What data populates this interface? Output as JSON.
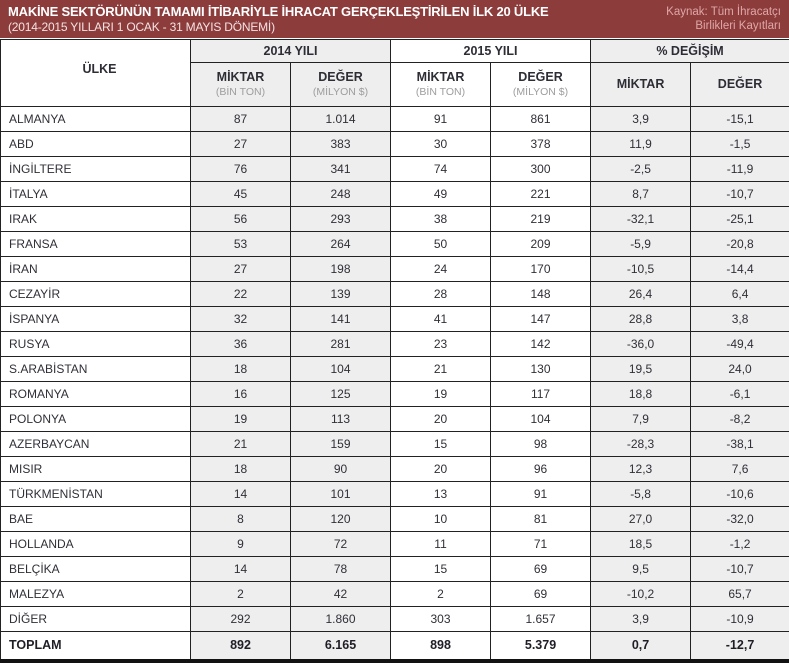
{
  "banner": {
    "title": "MAKİNE SEKTÖRÜNÜN TAMAMI İTİBARİYLE İHRACAT GERÇEKLEŞTİRİLEN İLK 20 ÜLKE",
    "subtitle": "(2014-2015 YILLARI 1 OCAK - 31 MAYIS DÖNEMİ)",
    "source_line1": "Kaynak: Tüm İhracatçı",
    "source_line2": "Birlikleri Kayıtları",
    "bg_color": "#8d3c3c"
  },
  "table": {
    "country_header": "ÜLKE",
    "groups": [
      {
        "label": "2014 YILI",
        "sub": [
          {
            "label": "MİKTAR",
            "unit": "(BİN TON)"
          },
          {
            "label": "DEĞER",
            "unit": "(MİLYON $)"
          }
        ]
      },
      {
        "label": "2015 YILI",
        "sub": [
          {
            "label": "MİKTAR",
            "unit": "(BİN TON)"
          },
          {
            "label": "DEĞER",
            "unit": "(MİLYON $)"
          }
        ]
      },
      {
        "label": "% DEĞİŞİM",
        "sub": [
          {
            "label": "MİKTAR",
            "unit": ""
          },
          {
            "label": "DEĞER",
            "unit": ""
          }
        ]
      }
    ]
  },
  "colors": {
    "banner_bg": "#8d3c3c",
    "shaded_column_bg": "#eeeeee",
    "border": "#222222",
    "source_text": "#dfa7a7"
  },
  "chart_data": {
    "type": "table",
    "title": "MAKİNE SEKTÖRÜNÜN TAMAMI İTİBARİYLE İHRACAT GERÇEKLEŞTİRİLEN İLK 20 ÜLKE",
    "subtitle": "(2014-2015 YILLARI 1 OCAK - 31 MAYIS DÖNEMİ)",
    "source": "Kaynak: Tüm İhracatçı Birlikleri Kayıtları",
    "columns": [
      "ÜLKE",
      "2014 YILI MİKTAR (BİN TON)",
      "2014 YILI DEĞER (MİLYON $)",
      "2015 YILI MİKTAR (BİN TON)",
      "2015 YILI DEĞER (MİLYON $)",
      "% DEĞİŞİM MİKTAR",
      "% DEĞİŞİM DEĞER"
    ],
    "rows": [
      {
        "country": "ALMANYA",
        "v": [
          "87",
          "1.014",
          "91",
          "861",
          "3,9",
          "-15,1"
        ]
      },
      {
        "country": "ABD",
        "v": [
          "27",
          "383",
          "30",
          "378",
          "11,9",
          "-1,5"
        ]
      },
      {
        "country": "İNGİLTERE",
        "v": [
          "76",
          "341",
          "74",
          "300",
          "-2,5",
          "-11,9"
        ]
      },
      {
        "country": "İTALYA",
        "v": [
          "45",
          "248",
          "49",
          "221",
          "8,7",
          "-10,7"
        ]
      },
      {
        "country": "IRAK",
        "v": [
          "56",
          "293",
          "38",
          "219",
          "-32,1",
          "-25,1"
        ]
      },
      {
        "country": "FRANSA",
        "v": [
          "53",
          "264",
          "50",
          "209",
          "-5,9",
          "-20,8"
        ]
      },
      {
        "country": "İRAN",
        "v": [
          "27",
          "198",
          "24",
          "170",
          "-10,5",
          "-14,4"
        ]
      },
      {
        "country": "CEZAYİR",
        "v": [
          "22",
          "139",
          "28",
          "148",
          "26,4",
          "6,4"
        ]
      },
      {
        "country": "İSPANYA",
        "v": [
          "32",
          "141",
          "41",
          "147",
          "28,8",
          "3,8"
        ]
      },
      {
        "country": "RUSYA",
        "v": [
          "36",
          "281",
          "23",
          "142",
          "-36,0",
          "-49,4"
        ]
      },
      {
        "country": "S.ARABİSTAN",
        "v": [
          "18",
          "104",
          "21",
          "130",
          "19,5",
          "24,0"
        ]
      },
      {
        "country": "ROMANYA",
        "v": [
          "16",
          "125",
          "19",
          "117",
          "18,8",
          "-6,1"
        ]
      },
      {
        "country": "POLONYA",
        "v": [
          "19",
          "113",
          "20",
          "104",
          "7,9",
          "-8,2"
        ]
      },
      {
        "country": "AZERBAYCAN",
        "v": [
          "21",
          "159",
          "15",
          "98",
          "-28,3",
          "-38,1"
        ]
      },
      {
        "country": "MISIR",
        "v": [
          "18",
          "90",
          "20",
          "96",
          "12,3",
          "7,6"
        ]
      },
      {
        "country": "TÜRKMENİSTAN",
        "v": [
          "14",
          "101",
          "13",
          "91",
          "-5,8",
          "-10,6"
        ]
      },
      {
        "country": "BAE",
        "v": [
          "8",
          "120",
          "10",
          "81",
          "27,0",
          "-32,0"
        ]
      },
      {
        "country": "HOLLANDA",
        "v": [
          "9",
          "72",
          "11",
          "71",
          "18,5",
          "-1,2"
        ]
      },
      {
        "country": "BELÇİKA",
        "v": [
          "14",
          "78",
          "15",
          "69",
          "9,5",
          "-10,7"
        ]
      },
      {
        "country": "MALEZYA",
        "v": [
          "2",
          "42",
          "2",
          "69",
          "-10,2",
          "65,7"
        ]
      },
      {
        "country": "DİĞER",
        "v": [
          "292",
          "1.860",
          "303",
          "1.657",
          "3,9",
          "-10,9"
        ]
      }
    ],
    "total_row": {
      "country": "TOPLAM",
      "v": [
        "892",
        "6.165",
        "898",
        "5.379",
        "0,7",
        "-12,7"
      ]
    }
  }
}
